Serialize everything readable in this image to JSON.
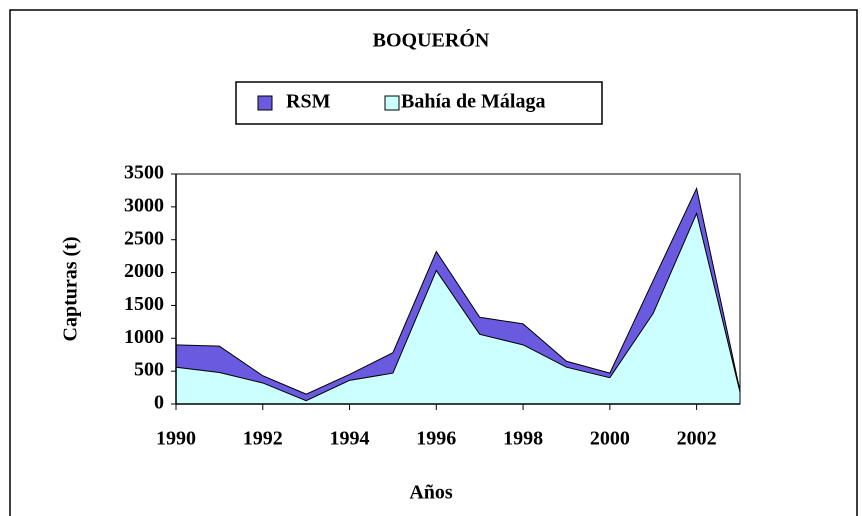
{
  "chart_data": {
    "type": "area",
    "title": "BOQUERÓN",
    "x_label": "Años",
    "y_label": "Capturas (t)",
    "x": [
      1990,
      1991,
      1992,
      1993,
      1994,
      1995,
      1996,
      1997,
      1998,
      1999,
      2000,
      2001,
      2002,
      2003
    ],
    "series": [
      {
        "name": "RSM",
        "color": "#6a5ae0",
        "values": [
          900,
          880,
          430,
          150,
          450,
          780,
          2320,
          1320,
          1220,
          650,
          470,
          1880,
          3280,
          200
        ]
      },
      {
        "name": "Bahía de Málaga",
        "color": "#ccffff",
        "values": [
          560,
          480,
          320,
          50,
          360,
          470,
          2030,
          1060,
          900,
          560,
          400,
          1380,
          2900,
          180
        ]
      }
    ],
    "xlim": [
      1990,
      2003
    ],
    "xticks": [
      1990,
      1992,
      1994,
      1996,
      1998,
      2000,
      2002
    ],
    "ylim": [
      0,
      3500
    ],
    "yticks": [
      0,
      500,
      1000,
      1500,
      2000,
      2500,
      3000,
      3500
    ]
  }
}
